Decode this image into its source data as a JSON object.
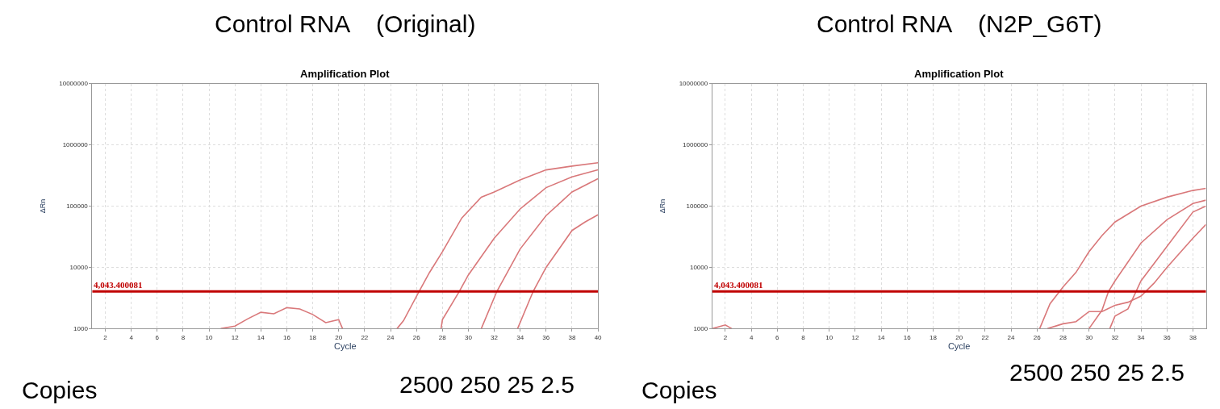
{
  "chart_data": [
    {
      "type": "line",
      "title": "Control RNA    (Original)",
      "subtitle": "Amplification Plot",
      "xlabel": "Cycle",
      "ylabel": "ΔRn",
      "log": true,
      "grid": true,
      "xlim": [
        1,
        40
      ],
      "xticks": [
        2,
        4,
        6,
        8,
        10,
        12,
        14,
        16,
        18,
        20,
        22,
        24,
        26,
        28,
        30,
        32,
        34,
        36,
        38,
        40
      ],
      "ylim": [
        1000,
        10000000
      ],
      "yticks": [
        1000,
        10000,
        100000,
        1000000,
        10000000
      ],
      "ref_lines": [
        {
          "axis": "y",
          "value": 4043.400081,
          "label": "4,043.400081",
          "color": "#c00000"
        }
      ],
      "annotations": [
        "Copies",
        "2500 250 25 2.5"
      ],
      "series": [
        {
          "color": "#d9787a",
          "x": [
            24.5,
            25,
            26.2,
            27,
            28,
            29.5,
            31,
            32,
            34,
            36,
            38,
            40
          ],
          "values": [
            1000,
            1345,
            4043,
            8200,
            18000,
            64000,
            140000,
            170000,
            268000,
            390000,
            450000,
            510000
          ]
        },
        {
          "color": "#d9787a",
          "x": [
            27.9,
            28,
            29.3,
            30,
            32,
            34,
            36,
            38,
            40
          ],
          "values": [
            1000,
            1400,
            4043,
            7500,
            30000,
            90000,
            200000,
            300000,
            390000
          ]
        },
        {
          "color": "#d9787a",
          "x": [
            31,
            32.2,
            34,
            36,
            38,
            40
          ],
          "values": [
            1000,
            4043,
            20000,
            70000,
            170000,
            280000
          ]
        },
        {
          "color": "#d9787a",
          "x": [
            33.8,
            35,
            36,
            38,
            39,
            40
          ],
          "values": [
            1000,
            4043,
            10000,
            40000,
            55000,
            72000
          ]
        },
        {
          "color": "#d9787a",
          "x": [
            10.9,
            12,
            13,
            14,
            15,
            16,
            17,
            18,
            19,
            20,
            20.3
          ],
          "values": [
            1000,
            1100,
            1450,
            1850,
            1750,
            2200,
            2100,
            1700,
            1250,
            1400,
            1000
          ]
        }
      ]
    },
    {
      "type": "line",
      "title": "Control RNA    (N2P_G6T)",
      "subtitle": "Amplification Plot",
      "xlabel": "Cycle",
      "ylabel": "ΔRn",
      "log": true,
      "grid": true,
      "xlim": [
        1,
        39
      ],
      "xticks": [
        2,
        4,
        6,
        8,
        10,
        12,
        14,
        16,
        18,
        20,
        22,
        24,
        26,
        28,
        30,
        32,
        34,
        36,
        38
      ],
      "ylim": [
        1000,
        10000000
      ],
      "yticks": [
        1000,
        10000,
        100000,
        1000000,
        10000000
      ],
      "ref_lines": [
        {
          "axis": "y",
          "value": 4043.400081,
          "label": "4,043.400081",
          "color": "#c00000"
        }
      ],
      "annotations": [
        "Copies",
        "2500 250 25 2.5"
      ],
      "series": [
        {
          "color": "#d9787a",
          "x": [
            26.2,
            27,
            28,
            29,
            30,
            31,
            32,
            34,
            36,
            38,
            39
          ],
          "values": [
            1000,
            2550,
            4800,
            8300,
            18000,
            33000,
            55000,
            100000,
            140000,
            180000,
            195000
          ]
        },
        {
          "color": "#d9787a",
          "x": [
            30,
            31,
            31.5,
            32,
            34,
            36,
            38,
            39
          ],
          "values": [
            1000,
            2000,
            4043,
            6000,
            25000,
            60000,
            110000,
            125000
          ]
        },
        {
          "color": "#d9787a",
          "x": [
            31.6,
            32,
            33,
            34,
            36,
            38,
            39
          ],
          "values": [
            1000,
            1600,
            2100,
            6000,
            22000,
            80000,
            100000
          ]
        },
        {
          "color": "#d9787a",
          "x": [
            26.8,
            28,
            29,
            30,
            31,
            32,
            33,
            34,
            35,
            36,
            38,
            39
          ],
          "values": [
            1000,
            1200,
            1300,
            1900,
            1900,
            2400,
            2700,
            3400,
            5500,
            10000,
            30000,
            50000
          ]
        },
        {
          "color": "#d9787a",
          "x": [
            1,
            2,
            2.5
          ],
          "values": [
            1000,
            1150,
            1000
          ]
        }
      ]
    }
  ]
}
